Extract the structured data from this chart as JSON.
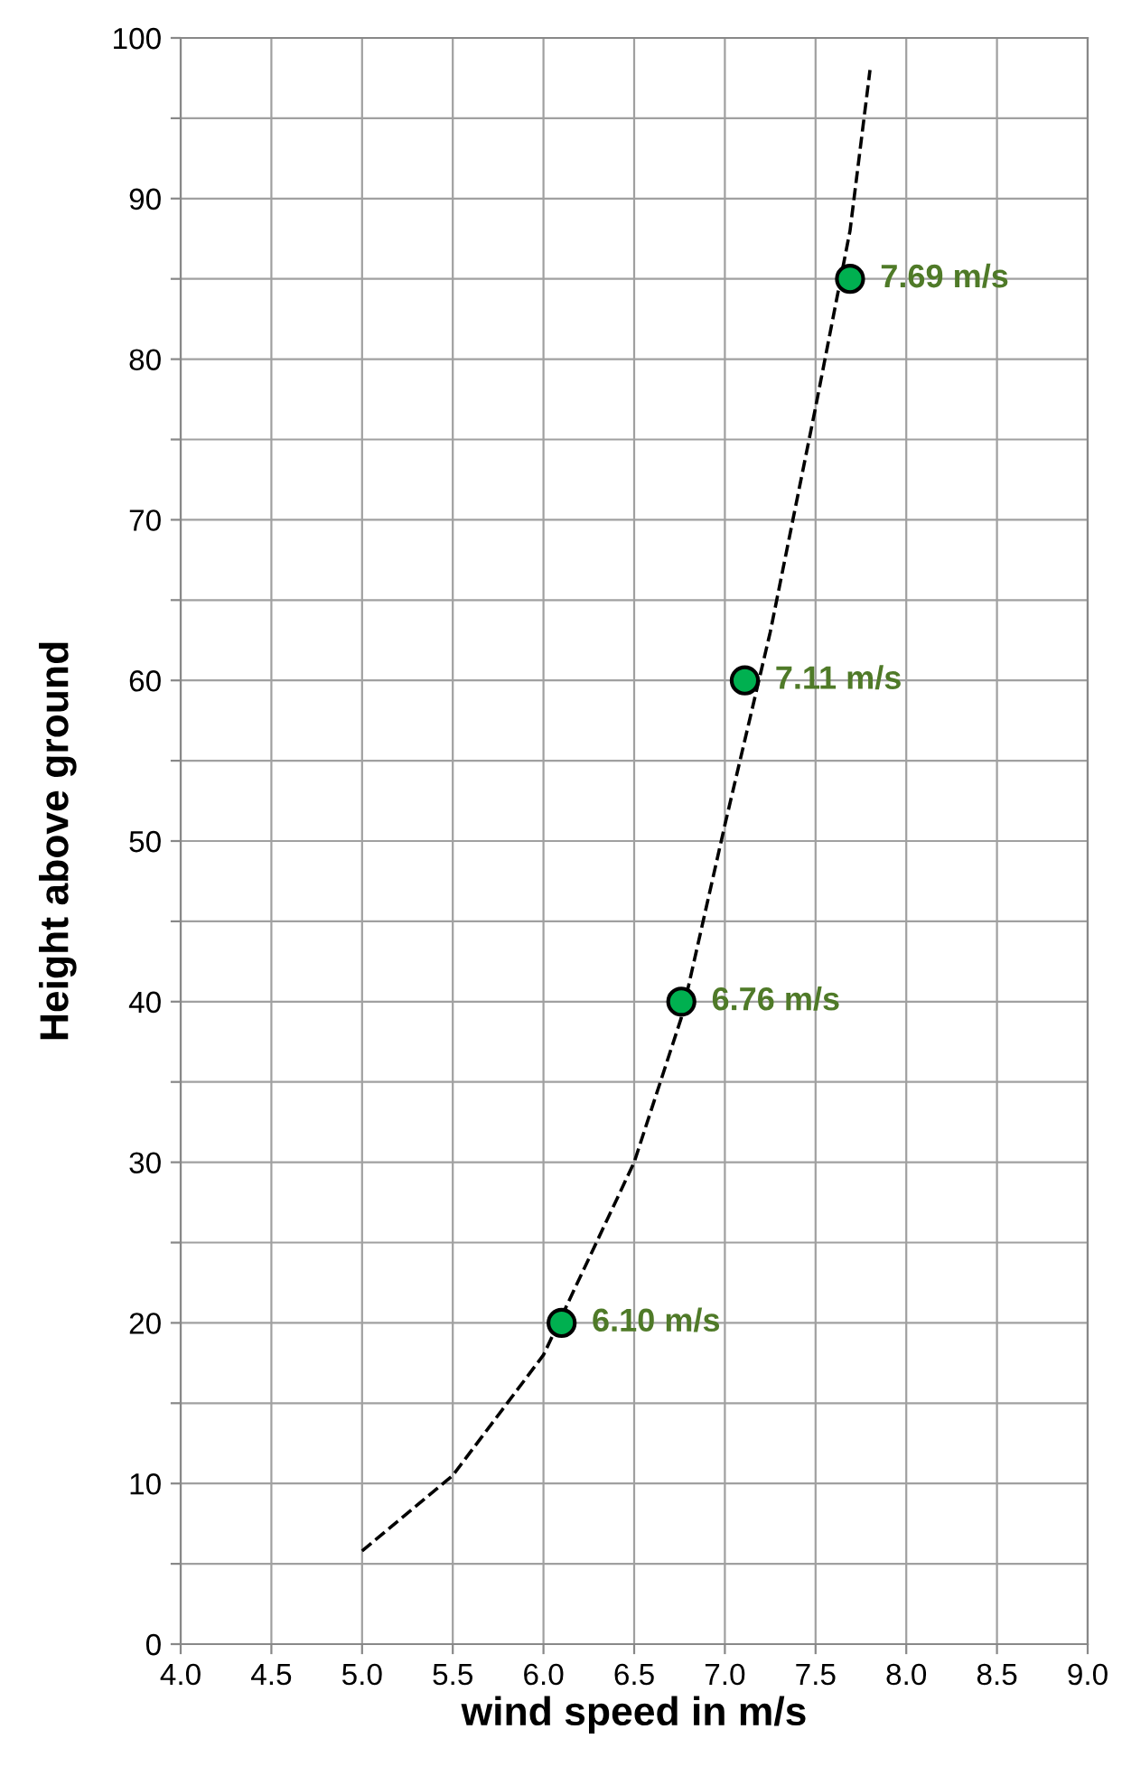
{
  "chart_data": {
    "type": "scatter",
    "xlabel": "wind speed in m/s",
    "ylabel": "Height above ground",
    "xlim": [
      4.0,
      9.0
    ],
    "xticks": [
      {
        "value": 4.0,
        "label": "4.0"
      },
      {
        "value": 4.5,
        "label": "4.5"
      },
      {
        "value": 5.0,
        "label": "5.0"
      },
      {
        "value": 5.5,
        "label": "5.5"
      },
      {
        "value": 6.0,
        "label": "6.0"
      },
      {
        "value": 6.5,
        "label": "6.5"
      },
      {
        "value": 7.0,
        "label": "7.0"
      },
      {
        "value": 7.5,
        "label": "7.5"
      },
      {
        "value": 8.0,
        "label": "8.0"
      },
      {
        "value": 8.5,
        "label": "8.5"
      },
      {
        "value": 9.0,
        "label": "9.0"
      }
    ],
    "ylim": [
      0,
      100
    ],
    "yticks": [
      0,
      {
        "value": 5,
        "label": null
      },
      10,
      {
        "value": 15,
        "label": null
      },
      20,
      {
        "value": 25,
        "label": null
      },
      30,
      {
        "value": 35,
        "label": null
      },
      40,
      {
        "value": 45,
        "label": null
      },
      50,
      {
        "value": 55,
        "label": null
      },
      60,
      {
        "value": 65,
        "label": null
      },
      70,
      {
        "value": 75,
        "label": null
      },
      80,
      {
        "value": 85,
        "label": null
      },
      90,
      {
        "value": 95,
        "label": null
      },
      100
    ],
    "grid": true,
    "legend": false,
    "series": [
      {
        "type": "line",
        "color": "#000000",
        "line_style": "dashed",
        "marker": "none",
        "x": [
          5.0,
          5.5,
          6.0,
          6.5,
          6.76,
          7.0,
          7.25,
          7.5,
          7.69,
          7.8
        ],
        "values": [
          5.8,
          10.5,
          18,
          30,
          39,
          51,
          63,
          77,
          88,
          98
        ]
      },
      {
        "color": "#00b050",
        "marker": "circle",
        "x": [
          6.1,
          6.76,
          7.11,
          7.69
        ],
        "values": [
          20,
          40,
          60,
          85
        ]
      }
    ],
    "annotations": [
      {
        "text": "6.10 m/s",
        "x": 6.1,
        "y": 20
      },
      {
        "text": "6.76 m/s",
        "x": 6.76,
        "y": 40
      },
      {
        "text": "7.11 m/s",
        "x": 7.11,
        "y": 60
      },
      {
        "text": "7.69 m/s",
        "x": 7.69,
        "y": 85
      }
    ]
  }
}
